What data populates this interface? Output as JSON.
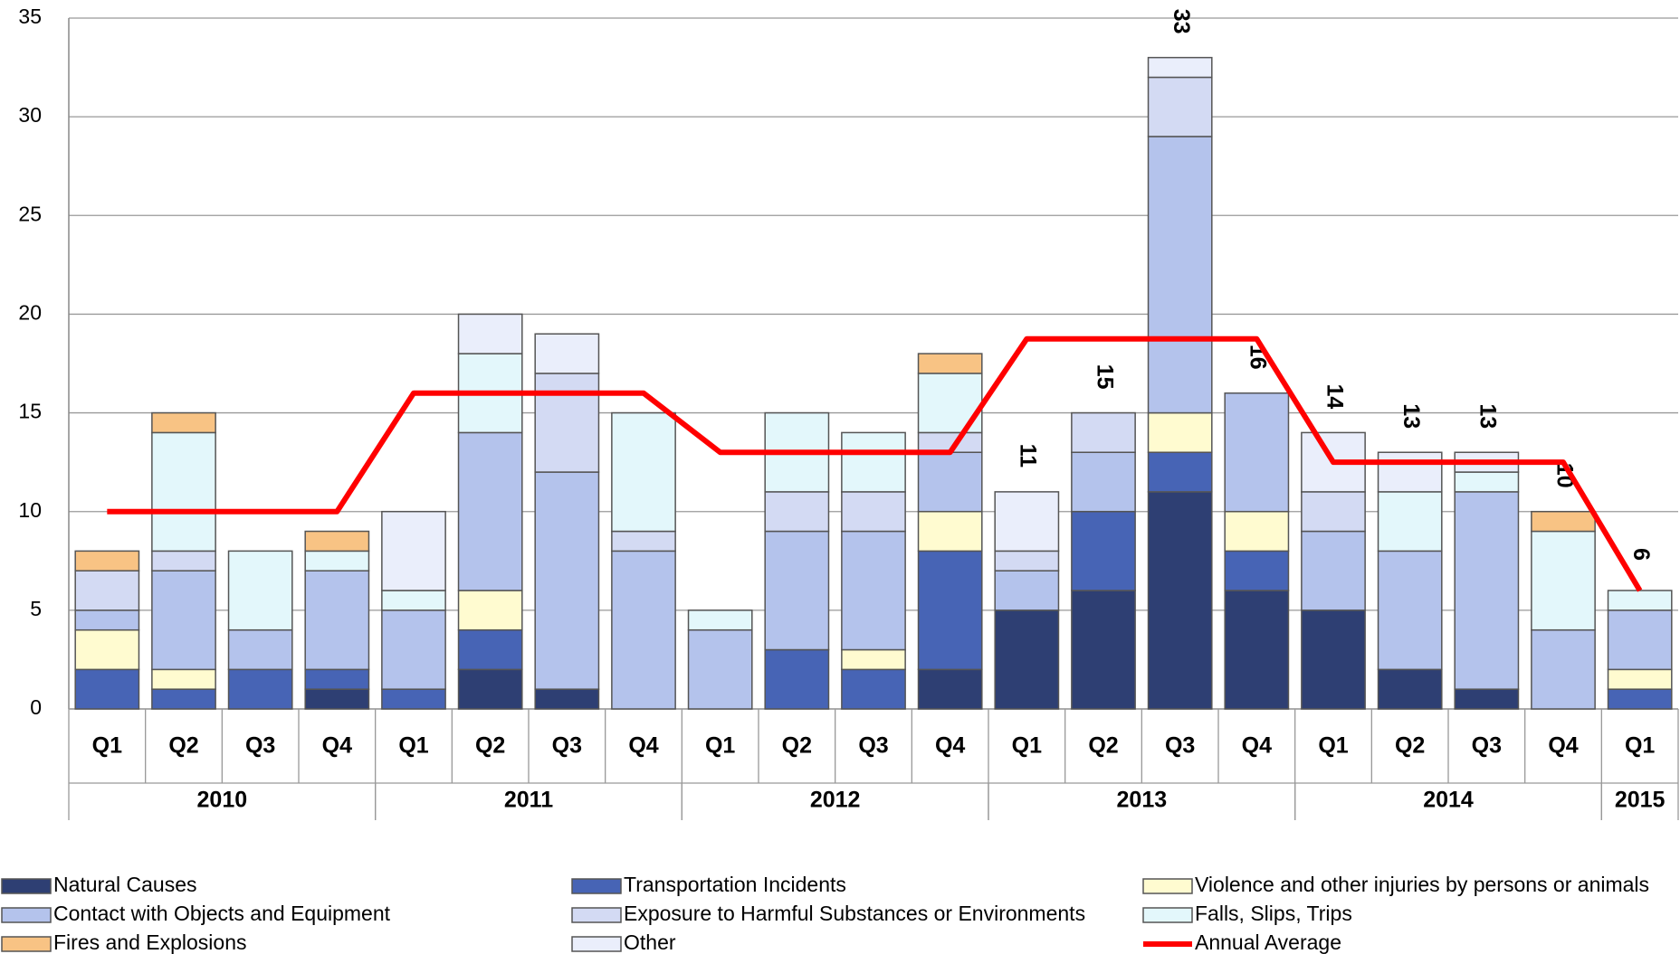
{
  "chart_data": {
    "type": "bar",
    "stacked": true,
    "groups": [
      {
        "label": "2010",
        "quarters": [
          "Q1",
          "Q2",
          "Q3",
          "Q4"
        ]
      },
      {
        "label": "2011",
        "quarters": [
          "Q1",
          "Q2",
          "Q3",
          "Q4"
        ]
      },
      {
        "label": "2012",
        "quarters": [
          "Q1",
          "Q2",
          "Q3",
          "Q4"
        ]
      },
      {
        "label": "2013",
        "quarters": [
          "Q1",
          "Q2",
          "Q3",
          "Q4"
        ]
      },
      {
        "label": "2014",
        "quarters": [
          "Q1",
          "Q2",
          "Q3",
          "Q4"
        ]
      },
      {
        "label": "2015",
        "quarters": [
          "Q1"
        ]
      }
    ],
    "series": [
      {
        "name": "Natural Causes",
        "color": "#2e3f73",
        "values": [
          0,
          0,
          0,
          1,
          0,
          2,
          1,
          0,
          0,
          0,
          0,
          2,
          5,
          6,
          11,
          6,
          5,
          2,
          1,
          0,
          0
        ]
      },
      {
        "name": "Transportation Incidents",
        "color": "#4764b5",
        "values": [
          2,
          1,
          2,
          1,
          1,
          2,
          0,
          0,
          0,
          3,
          2,
          6,
          0,
          4,
          2,
          2,
          0,
          0,
          0,
          0,
          1
        ]
      },
      {
        "name": "Violence and other injuries by persons or animals",
        "color": "#fffbd0",
        "values": [
          2,
          1,
          0,
          0,
          0,
          2,
          0,
          0,
          0,
          0,
          1,
          2,
          0,
          0,
          2,
          2,
          0,
          0,
          0,
          0,
          1
        ]
      },
      {
        "name": "Contact with Objects and Equipment",
        "color": "#b4c3ec",
        "values": [
          1,
          5,
          2,
          5,
          4,
          8,
          11,
          8,
          4,
          6,
          6,
          3,
          2,
          3,
          14,
          6,
          4,
          6,
          10,
          4,
          3
        ]
      },
      {
        "name": "Exposure to Harmful Substances or Environments",
        "color": "#d3daf3",
        "values": [
          2,
          1,
          0,
          0,
          0,
          0,
          5,
          1,
          0,
          2,
          2,
          1,
          1,
          2,
          3,
          0,
          2,
          0,
          0,
          0,
          0
        ]
      },
      {
        "name": "Falls, Slips, Trips",
        "color": "#e3f7fb",
        "values": [
          0,
          6,
          4,
          1,
          1,
          4,
          0,
          6,
          1,
          4,
          3,
          3,
          0,
          0,
          0,
          0,
          0,
          3,
          1,
          5,
          1
        ]
      },
      {
        "name": "Fires and Explosions",
        "color": "#f8c384",
        "values": [
          1,
          1,
          0,
          1,
          0,
          0,
          0,
          0,
          0,
          0,
          0,
          1,
          0,
          0,
          0,
          0,
          0,
          0,
          0,
          1,
          0
        ]
      },
      {
        "name": "Other",
        "color": "#eaeefb",
        "values": [
          0,
          0,
          0,
          0,
          4,
          2,
          2,
          0,
          0,
          0,
          0,
          0,
          3,
          0,
          1,
          0,
          3,
          2,
          1,
          0,
          0
        ]
      }
    ],
    "line_series": {
      "name": "Annual Average",
      "color": "#ff0000",
      "values": [
        10,
        10,
        10,
        10,
        16,
        16,
        16,
        16,
        13,
        13,
        13,
        13,
        18.75,
        18.75,
        18.75,
        18.75,
        12.5,
        12.5,
        12.5,
        12.5,
        6
      ]
    },
    "total_labels": [
      null,
      null,
      null,
      null,
      null,
      null,
      null,
      null,
      null,
      null,
      null,
      null,
      11,
      15,
      33,
      16,
      14,
      13,
      13,
      10,
      6
    ],
    "ylim": [
      0,
      35
    ],
    "yticks": [
      0,
      5,
      10,
      15,
      20,
      25,
      30,
      35
    ],
    "grid": true
  }
}
